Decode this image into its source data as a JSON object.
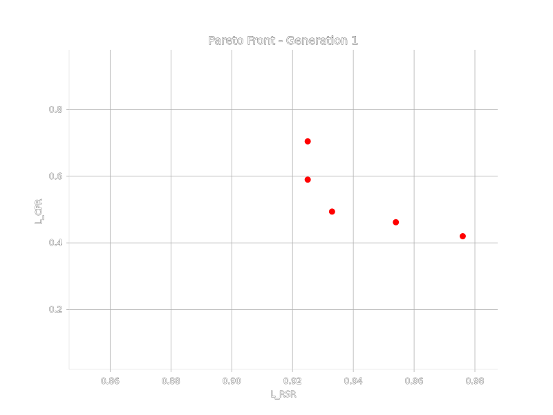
{
  "chart_data": {
    "type": "scatter",
    "title": "Pareto Front - Generation 1",
    "xlabel": "L_RSR",
    "ylabel": "L_CPR",
    "xlim": [
      0.8465,
      0.9875
    ],
    "ylim": [
      0.02,
      0.98
    ],
    "xticks": [
      0.86,
      0.88,
      0.9,
      0.92,
      0.94,
      0.96,
      0.98
    ],
    "xtick_labels": [
      "0.86",
      "0.88",
      "0.90",
      "0.92",
      "0.94",
      "0.96",
      "0.98"
    ],
    "yticks": [
      0.2,
      0.4,
      0.6,
      0.8
    ],
    "ytick_labels": [
      "0.2",
      "0.4",
      "0.6",
      "0.8"
    ],
    "grid": true,
    "legend": "none",
    "marker_color": "#ff0000",
    "series": [
      {
        "points": [
          {
            "x": 0.925,
            "y": 0.705
          },
          {
            "x": 0.925,
            "y": 0.59
          },
          {
            "x": 0.933,
            "y": 0.494
          },
          {
            "x": 0.954,
            "y": 0.462
          },
          {
            "x": 0.976,
            "y": 0.42
          }
        ]
      }
    ]
  }
}
